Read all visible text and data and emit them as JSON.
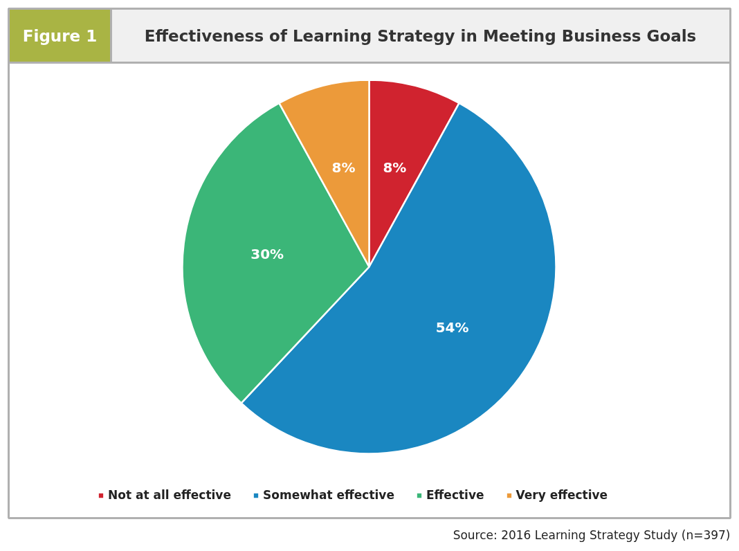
{
  "chart_data": {
    "type": "pie",
    "title": "Effectiveness of Learning Strategy in Meeting Business Goals",
    "annotations": [
      "Figure 1",
      "Source: 2016 Learning Strategy Study (n=397)"
    ],
    "categories": [
      "Not at all effective",
      "Somewhat effective",
      "Effective",
      "Very effective"
    ],
    "values": [
      8,
      54,
      30,
      8
    ],
    "colors": [
      "#d0232f",
      "#1a87c1",
      "#3bb678",
      "#ec9a3a"
    ],
    "value_labels": [
      "8%",
      "54%",
      "30%",
      "8%"
    ],
    "legend": "bottom"
  }
}
